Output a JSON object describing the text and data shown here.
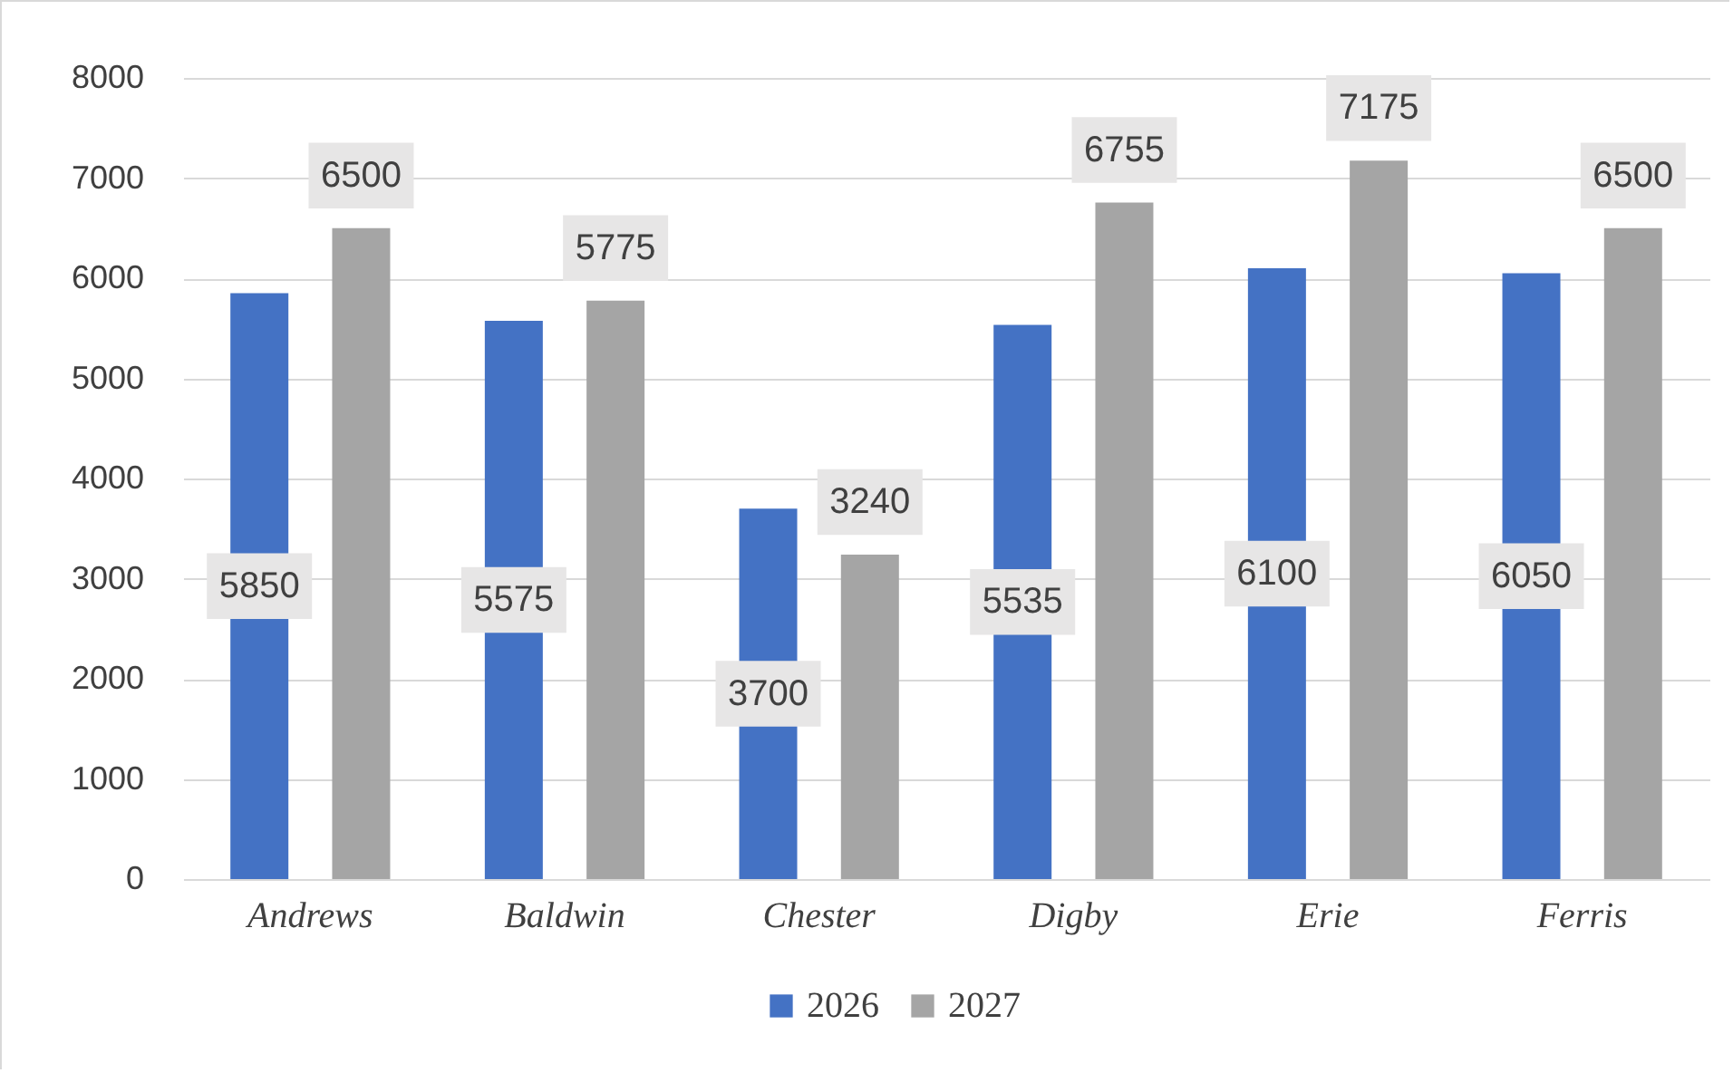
{
  "chart_data": {
    "type": "bar",
    "categories": [
      "Andrews",
      "Baldwin",
      "Chester",
      "Digby",
      "Erie",
      "Ferris"
    ],
    "series": [
      {
        "name": "2026",
        "color": "#4472c4",
        "values": [
          5850,
          5575,
          3700,
          5535,
          6100,
          6050
        ]
      },
      {
        "name": "2027",
        "color": "#a5a5a5",
        "values": [
          6500,
          5775,
          3240,
          6755,
          7175,
          6500
        ]
      }
    ],
    "ylim": [
      0,
      8000
    ],
    "yticks": [
      0,
      1000,
      2000,
      3000,
      4000,
      5000,
      6000,
      7000,
      8000
    ],
    "grid": "y",
    "legend": "bottom",
    "data_labels": true
  }
}
